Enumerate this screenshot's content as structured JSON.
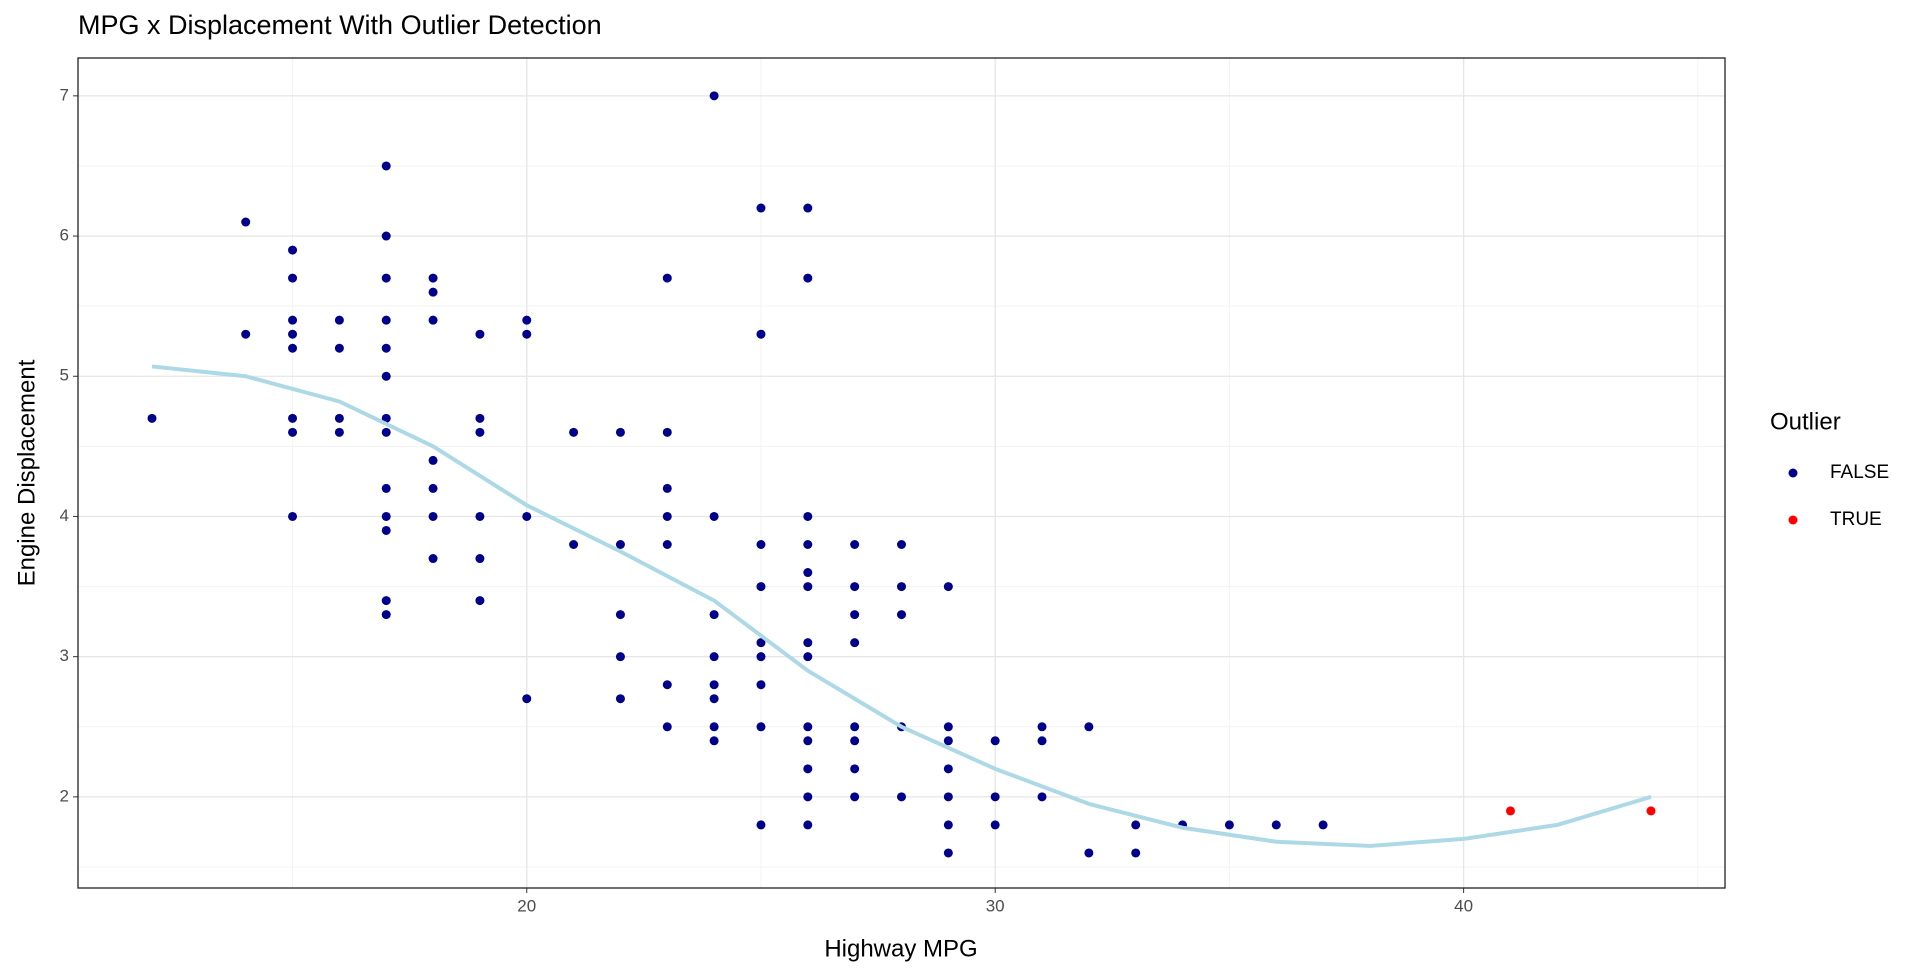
{
  "chart_data": {
    "type": "scatter",
    "title": "MPG x Displacement With Outlier Detection",
    "x_label": "Highway MPG",
    "y_label": "Engine Displacement",
    "legend_title": "Outlier",
    "legend": "right",
    "grid": true,
    "xlim": [
      10.42,
      45.58
    ],
    "ylim": [
      1.35,
      7.27
    ],
    "xticks": [
      20,
      30,
      40
    ],
    "yticks": [
      2,
      3,
      4,
      5,
      6,
      7
    ],
    "x_minor_grid": [
      15,
      25,
      35,
      45
    ],
    "y_minor_grid": [
      1.5,
      2.5,
      3.5,
      4.5,
      5.5,
      6.5
    ],
    "series": [
      {
        "name": "FALSE",
        "color": "#00008b",
        "x": [
          12,
          14,
          14,
          15,
          15,
          15,
          15,
          15,
          15,
          15,
          15,
          16,
          16,
          16,
          16,
          17,
          17,
          17,
          17,
          17,
          17,
          17,
          17,
          17,
          17,
          17,
          17,
          17,
          18,
          18,
          18,
          18,
          18,
          18,
          18,
          19,
          19,
          19,
          19,
          19,
          19,
          20,
          20,
          20,
          20,
          21,
          21,
          22,
          22,
          22,
          22,
          22,
          23,
          23,
          23,
          23,
          23,
          23,
          23,
          24,
          24,
          24,
          24,
          24,
          24,
          24,
          24,
          25,
          25,
          25,
          25,
          25,
          25,
          25,
          25,
          25,
          26,
          26,
          26,
          26,
          26,
          26,
          26,
          26,
          26,
          26,
          26,
          26,
          26,
          27,
          27,
          27,
          27,
          27,
          27,
          27,
          27,
          28,
          28,
          28,
          28,
          28,
          29,
          29,
          29,
          29,
          29,
          29,
          29,
          30,
          30,
          30,
          31,
          31,
          31,
          32,
          32,
          33,
          33,
          34,
          35,
          36,
          37
        ],
        "values": [
          4.7,
          6.1,
          5.3,
          5.9,
          5.7,
          5.4,
          5.3,
          5.2,
          4.7,
          4.6,
          4.0,
          5.4,
          5.2,
          4.7,
          4.6,
          6.5,
          6.0,
          5.7,
          5.4,
          5.2,
          5.0,
          4.7,
          4.6,
          4.2,
          4.0,
          3.9,
          3.4,
          3.3,
          5.7,
          5.6,
          5.4,
          4.4,
          4.2,
          4.0,
          3.7,
          5.3,
          4.7,
          4.6,
          4.0,
          3.7,
          3.4,
          5.4,
          5.3,
          4.0,
          2.7,
          4.6,
          3.8,
          4.6,
          3.8,
          3.3,
          3.0,
          2.7,
          5.7,
          4.6,
          4.2,
          4.0,
          3.8,
          2.8,
          2.5,
          7.0,
          4.0,
          3.3,
          3.0,
          2.8,
          2.7,
          2.5,
          2.4,
          6.2,
          5.3,
          3.8,
          3.5,
          3.1,
          3.0,
          2.8,
          2.5,
          1.8,
          6.2,
          5.7,
          4.0,
          3.8,
          3.6,
          3.5,
          3.1,
          3.0,
          2.5,
          2.4,
          2.2,
          2.0,
          1.8,
          3.8,
          3.5,
          3.3,
          3.1,
          2.5,
          2.4,
          2.2,
          2.0,
          3.8,
          3.5,
          3.3,
          2.5,
          2.0,
          3.5,
          2.5,
          2.4,
          2.2,
          2.0,
          1.8,
          1.6,
          2.4,
          2.0,
          1.8,
          2.5,
          2.4,
          2.0,
          2.5,
          1.6,
          1.8,
          1.6,
          1.8,
          1.8,
          1.8,
          1.8
        ]
      },
      {
        "name": "TRUE",
        "color": "#ff0000",
        "x": [
          41,
          44
        ],
        "values": [
          1.9,
          1.9
        ]
      }
    ],
    "trend": {
      "color": "#add8e6",
      "x": [
        12,
        14,
        16,
        18,
        20,
        22,
        24,
        26,
        28,
        30,
        32,
        34,
        36,
        38,
        40,
        42,
        44
      ],
      "values": [
        5.07,
        5.0,
        4.82,
        4.5,
        4.08,
        3.75,
        3.4,
        2.9,
        2.5,
        2.2,
        1.95,
        1.78,
        1.68,
        1.65,
        1.7,
        1.8,
        2.0
      ]
    }
  }
}
